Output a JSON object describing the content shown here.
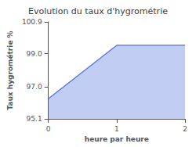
{
  "chart_data": {
    "type": "area",
    "title": "Evolution du taux d'hygrométrie",
    "xlabel": "heure par heure",
    "ylabel": "Taux hygrométrie %",
    "x": [
      0,
      1,
      2
    ],
    "values": [
      96.3,
      99.5,
      99.5
    ],
    "xlim": [
      0,
      2
    ],
    "xticks": [
      0,
      1,
      2
    ],
    "ylim": [
      95.1,
      100.9
    ],
    "yticks": [
      95.1,
      {
        "value": 97.0,
        "label": "97.0"
      },
      {
        "value": 99.0,
        "label": "99.0"
      },
      100.9
    ],
    "grid": false
  }
}
